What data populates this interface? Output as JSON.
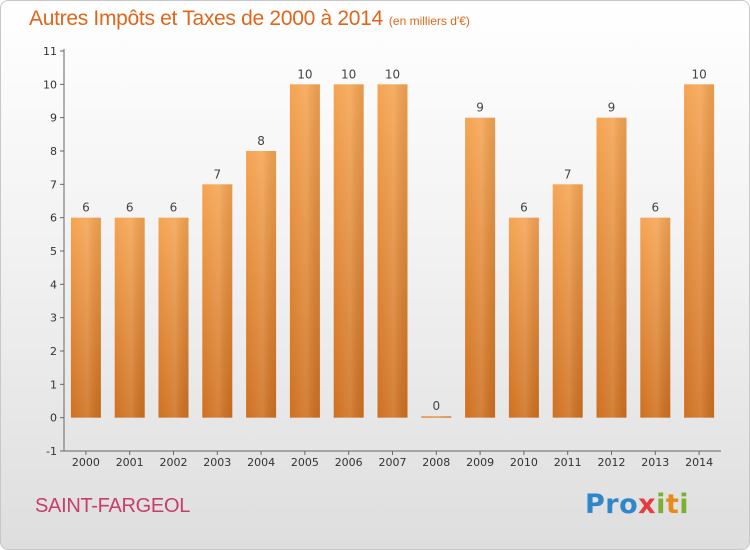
{
  "header": {
    "title": "Autres Impôts et Taxes de 2000 à 2014",
    "unit": "(en milliers d'€)"
  },
  "footer": {
    "commune": "SAINT-FARGEOL",
    "logo": "Proxiti"
  },
  "chart_data": {
    "type": "bar",
    "title": "Autres Impôts et Taxes de 2000 à 2014",
    "subtitle": "(en milliers d'€)",
    "xlabel": "",
    "ylabel": "",
    "categories": [
      "2000",
      "2001",
      "2002",
      "2003",
      "2004",
      "2005",
      "2006",
      "2007",
      "2008",
      "2009",
      "2010",
      "2011",
      "2012",
      "2013",
      "2014"
    ],
    "values": [
      6,
      6,
      6,
      7,
      8,
      10,
      10,
      10,
      0,
      9,
      6,
      7,
      9,
      6,
      10
    ],
    "y_ticks": [
      "-1",
      "0",
      "1",
      "2",
      "3",
      "4",
      "5",
      "6",
      "7",
      "8",
      "9",
      "10",
      "11"
    ],
    "ylim": [
      -1,
      11
    ],
    "grid": false,
    "legend": "none",
    "colors": {
      "bar_top": "#f5a452",
      "bar_bottom": "#cf7020",
      "title": "#e0661a",
      "commune": "#c83c6e"
    }
  }
}
